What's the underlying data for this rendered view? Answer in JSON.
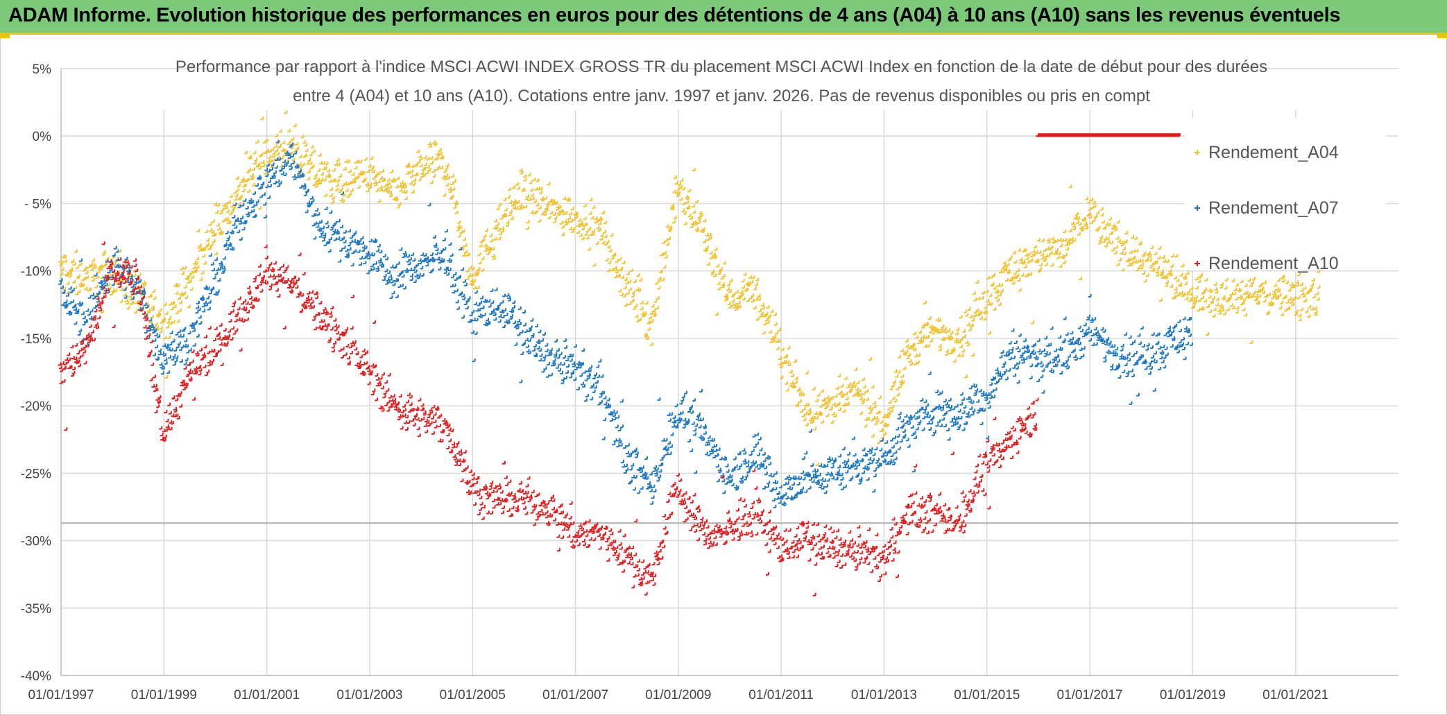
{
  "banner": {
    "title": "ADAM Informe. Evolution historique des performances en euros pour des détentions de 4 ans (A04) à 10 ans (A10) sans les revenus éventuels",
    "color": "#7dc97a",
    "accent": "#e8c600"
  },
  "chart_data": {
    "type": "scatter",
    "title_line1": "Performance par rapport à l'indice MSCI ACWI INDEX GROSS TR  du placement MSCI ACWI Index en fonction de la date de début pour des durées",
    "title_line2": "entre 4 (A04) et 10 ans (A10). Cotations entre janv. 1997 et janv. 2026. Pas de revenus disponibles ou pris en compt",
    "ylim": [
      -40,
      5
    ],
    "y_ticks": [
      5,
      0,
      -5,
      -10,
      -15,
      -20,
      -25,
      -30,
      -35,
      -40
    ],
    "y_tick_labels": [
      "5%",
      "0%",
      "- 5%",
      "-10%",
      "-15%",
      "-20%",
      "-25%",
      "-30%",
      "-35%",
      "-40%"
    ],
    "xlim": [
      1997.0,
      2023.0
    ],
    "x_ticks": [
      1997,
      1999,
      2001,
      2003,
      2005,
      2007,
      2009,
      2011,
      2013,
      2015,
      2017,
      2019,
      2021
    ],
    "x_tick_labels": [
      "01/01/1997",
      "01/01/1999",
      "01/01/2001",
      "01/01/2003",
      "01/01/2005",
      "01/01/2007",
      "01/01/2009",
      "01/01/2011",
      "01/01/2013",
      "01/01/2015",
      "01/01/2017",
      "01/01/2019",
      "01/01/2021"
    ],
    "grid": true,
    "reference_line_y": -28.7,
    "legend_position": "right",
    "series": [
      {
        "name": "Rendement_A04",
        "color": "#f2c12e",
        "x": [
          1997.0,
          1997.5,
          1998.0,
          1998.5,
          1999.0,
          1999.5,
          2000.0,
          2000.5,
          2001.0,
          2001.5,
          2002.0,
          2002.5,
          2003.0,
          2003.5,
          2004.0,
          2004.5,
          2005.0,
          2005.5,
          2006.0,
          2006.5,
          2007.0,
          2007.5,
          2008.0,
          2008.5,
          2009.0,
          2009.5,
          2010.0,
          2010.5,
          2011.0,
          2011.5,
          2012.0,
          2012.5,
          2013.0,
          2013.5,
          2014.0,
          2014.5,
          2015.0,
          2015.5,
          2016.0,
          2016.5,
          2017.0,
          2017.5,
          2018.0,
          2018.5,
          2019.0,
          2019.5,
          2020.0,
          2020.5,
          2021.0,
          2021.5
        ],
        "y": [
          -10.0,
          -10.5,
          -10.0,
          -12.0,
          -14.0,
          -11.0,
          -7.0,
          -4.0,
          -1.5,
          -1.0,
          -3.0,
          -3.5,
          -3.0,
          -4.5,
          -2.5,
          -2.0,
          -10.5,
          -7.0,
          -4.0,
          -5.5,
          -6.0,
          -7.0,
          -11.0,
          -14.0,
          -4.0,
          -7.0,
          -12.0,
          -11.5,
          -16.0,
          -20.5,
          -20.0,
          -19.0,
          -21.5,
          -16.0,
          -14.5,
          -15.0,
          -12.0,
          -10.0,
          -9.0,
          -8.5,
          -5.5,
          -8.0,
          -9.0,
          -10.5,
          -11.7,
          -11.8,
          -11.8,
          -11.8,
          -11.8,
          -11.8
        ],
        "noise": 1.3
      },
      {
        "name": "Rendement_A07",
        "color": "#1f78c4",
        "x": [
          1997.0,
          1997.5,
          1998.0,
          1998.5,
          1999.0,
          1999.5,
          2000.0,
          2000.5,
          2001.0,
          2001.5,
          2002.0,
          2002.5,
          2003.0,
          2003.5,
          2004.0,
          2004.5,
          2005.0,
          2005.5,
          2006.0,
          2006.5,
          2007.0,
          2007.5,
          2008.0,
          2008.5,
          2009.0,
          2009.5,
          2010.0,
          2010.5,
          2011.0,
          2011.5,
          2012.0,
          2012.5,
          2013.0,
          2013.5,
          2014.0,
          2014.5,
          2015.0,
          2015.5,
          2016.0,
          2016.5,
          2017.0,
          2017.5,
          2018.0,
          2018.5,
          2019.0
        ],
        "y": [
          -11.5,
          -14.0,
          -9.5,
          -11.5,
          -16.5,
          -15.0,
          -11.0,
          -6.0,
          -3.5,
          -1.5,
          -6.5,
          -7.5,
          -9.0,
          -10.5,
          -9.5,
          -9.0,
          -13.5,
          -12.5,
          -14.5,
          -16.5,
          -17.5,
          -18.5,
          -24.0,
          -26.0,
          -20.5,
          -22.0,
          -25.5,
          -23.5,
          -26.5,
          -25.5,
          -25.0,
          -24.5,
          -24.0,
          -21.5,
          -20.5,
          -20.5,
          -19.5,
          -16.0,
          -16.5,
          -16.5,
          -14.5,
          -16.0,
          -16.5,
          -15.5,
          -14.5
        ],
        "noise": 1.3
      },
      {
        "name": "Rendement_A10",
        "color": "#e41e1e",
        "x": [
          1997.0,
          1997.5,
          1998.0,
          1998.5,
          1999.0,
          1999.5,
          2000.0,
          2000.5,
          2001.0,
          2001.5,
          2002.0,
          2002.5,
          2003.0,
          2003.5,
          2004.0,
          2004.5,
          2005.0,
          2005.5,
          2006.0,
          2006.5,
          2007.0,
          2007.5,
          2008.0,
          2008.5,
          2009.0,
          2009.5,
          2010.0,
          2010.5,
          2011.0,
          2011.5,
          2012.0,
          2012.5,
          2013.0,
          2013.5,
          2014.0,
          2014.5,
          2015.0,
          2015.5,
          2016.0
        ],
        "y": [
          -17.5,
          -16.0,
          -10.0,
          -10.5,
          -22.0,
          -18.0,
          -16.0,
          -13.0,
          -10.0,
          -11.0,
          -13.0,
          -15.0,
          -17.5,
          -20.0,
          -21.0,
          -21.5,
          -26.0,
          -27.0,
          -27.0,
          -27.5,
          -29.5,
          -29.5,
          -31.0,
          -33.0,
          -26.0,
          -29.5,
          -29.5,
          -28.0,
          -30.5,
          -30.0,
          -30.5,
          -31.0,
          -31.5,
          -28.0,
          -28.0,
          -28.5,
          -24.5,
          -22.5,
          -20.5
        ],
        "noise": 1.2,
        "flat_segment": {
          "x_start": 2016.0,
          "x_end": 2018.75,
          "y": 0.0
        }
      }
    ]
  }
}
